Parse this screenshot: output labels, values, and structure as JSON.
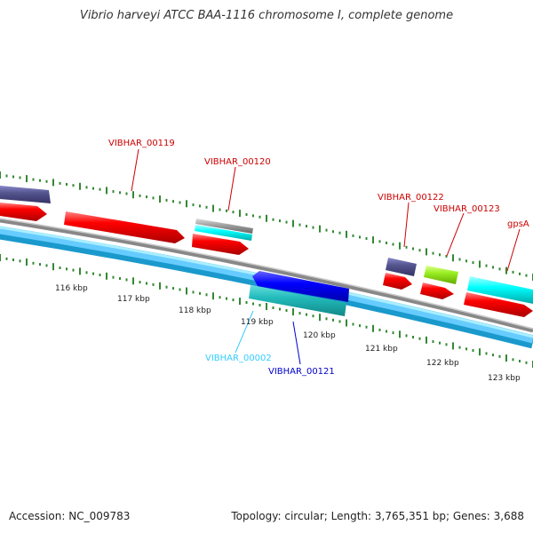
{
  "title": "Vibrio harveyi ATCC BAA-1116 chromosome I, complete genome",
  "footer": {
    "accession": "Accession: NC_009783",
    "topology": "Topology: circular; Length: 3,765,351 bp; Genes: 3,688"
  },
  "colors": {
    "red_gene": "#ff0000",
    "label_red": "#cc0000",
    "label_cyan": "#33ccff",
    "label_blue": "#0000cc",
    "backbone_gray": "#888888",
    "backbone_blue": "#66ccff",
    "tick_green": "#338833"
  },
  "scale_labels": [
    "116 kbp",
    "117 kbp",
    "118 kbp",
    "119 kbp",
    "120 kbp",
    "121 kbp",
    "122 kbp",
    "123 kbp"
  ],
  "gene_labels": [
    {
      "text": "VIBHAR_00119",
      "color": "#cc0000"
    },
    {
      "text": "VIBHAR_00120",
      "color": "#cc0000"
    },
    {
      "text": "VIBHAR_00122",
      "color": "#cc0000"
    },
    {
      "text": "VIBHAR_00123",
      "color": "#cc0000"
    },
    {
      "text": "gpsA",
      "color": "#cc0000"
    },
    {
      "text": "VIBHAR_00002",
      "color": "#33ccff"
    },
    {
      "text": "VIBHAR_00121",
      "color": "#0000cc"
    }
  ]
}
